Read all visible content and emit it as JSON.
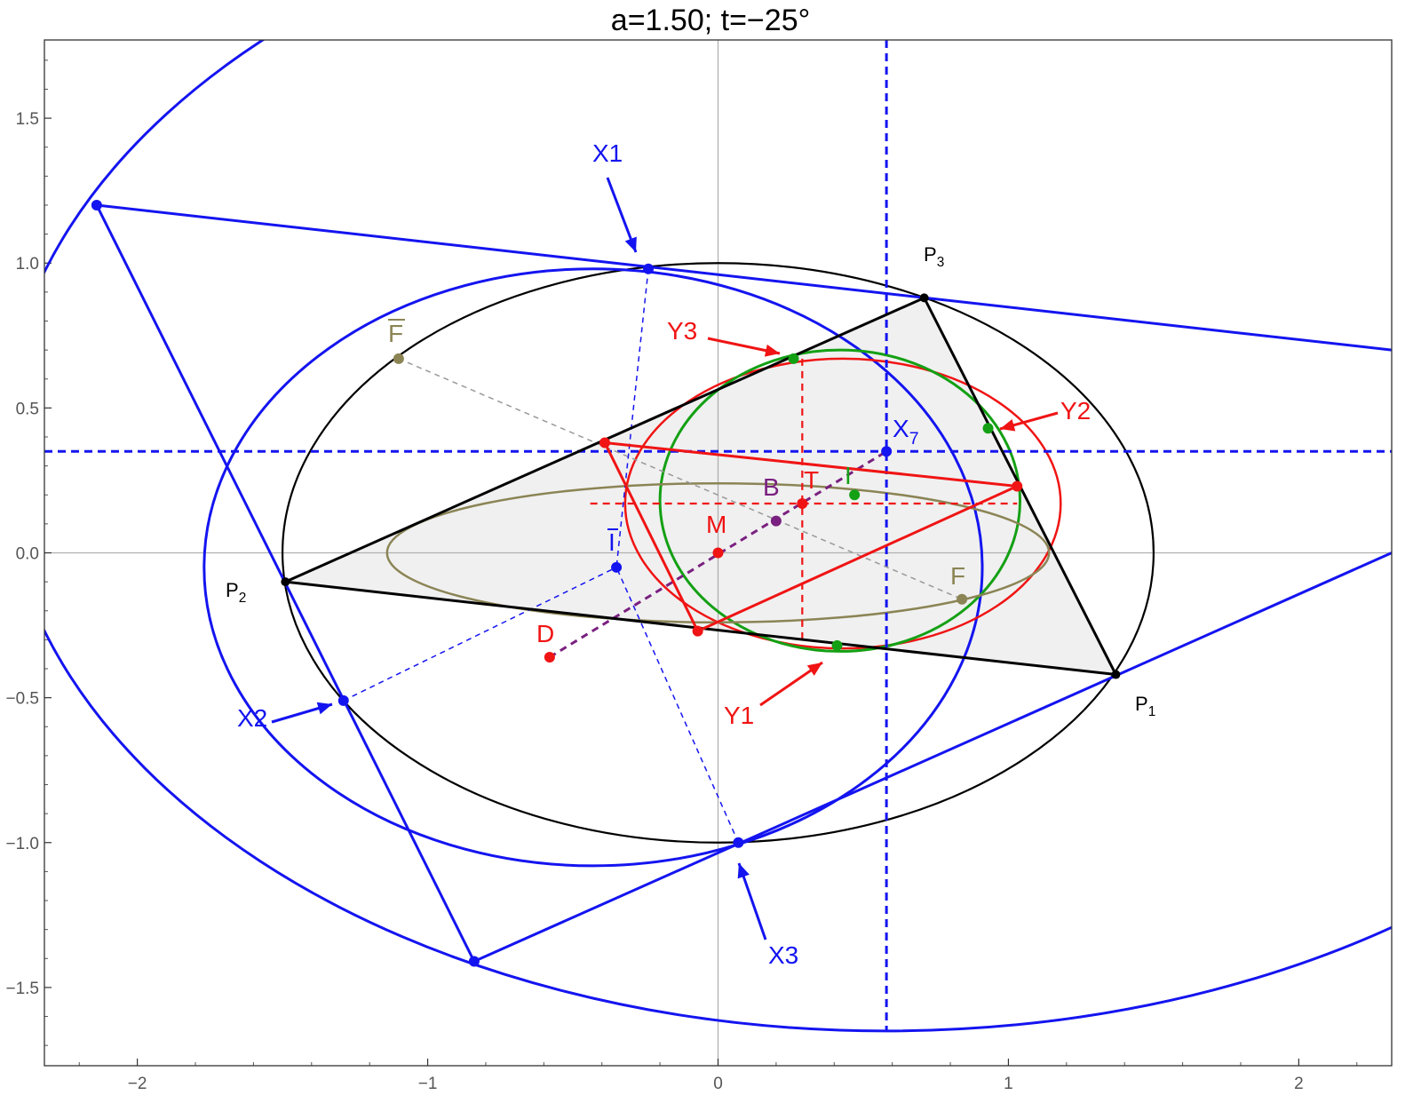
{
  "title": "a=1.50; t=−25°",
  "axes": {
    "x_ticks": [
      "−2",
      "−1",
      "0",
      "1",
      "2"
    ],
    "y_ticks": [
      "1.5",
      "1.0",
      "0.5",
      "0.0",
      "−0.5",
      "−1.0",
      "−1.5"
    ],
    "x_tick_values": [
      -2,
      -1,
      0,
      1,
      2
    ],
    "y_tick_values": [
      1.5,
      1.0,
      0.5,
      0.0,
      -0.5,
      -1.0,
      -1.5
    ],
    "xlim": [
      -2.32,
      2.32
    ],
    "ylim": [
      -1.77,
      1.77
    ]
  },
  "colors": {
    "black": "#000000",
    "blue": "#1414f0",
    "red": "#f01414",
    "green": "#14a014",
    "olive": "#8b8455",
    "purple": "#7a2080",
    "gray": "#999999",
    "fill": "#f0f0f0"
  },
  "points": {
    "P1": [
      1.37,
      -0.42
    ],
    "P2": [
      -1.49,
      -0.1
    ],
    "P3": [
      0.71,
      0.88
    ],
    "X1": [
      -0.24,
      0.98
    ],
    "X2": [
      -1.29,
      -0.51
    ],
    "X3": [
      0.07,
      -1.0
    ],
    "X7": [
      0.58,
      0.35
    ],
    "Y1": [
      0.41,
      -0.32
    ],
    "Y2": [
      0.93,
      0.43
    ],
    "Y3": [
      0.26,
      0.67
    ],
    "R1": [
      -0.39,
      0.38
    ],
    "R2": [
      1.03,
      0.23
    ],
    "R3": [
      -0.07,
      -0.27
    ],
    "F": [
      0.84,
      -0.16
    ],
    "Fbar": [
      -1.1,
      0.67
    ],
    "Ibar": [
      -0.35,
      -0.05
    ],
    "I": [
      0.47,
      0.2
    ],
    "T": [
      0.29,
      0.17
    ],
    "B": [
      0.2,
      0.11
    ],
    "M": [
      0.0,
      0.0
    ],
    "D": [
      -0.58,
      -0.36
    ],
    "E1": [
      -2.14,
      1.2
    ],
    "E2": [
      -0.84,
      -1.41
    ]
  },
  "labels": {
    "P1": "P",
    "P1_sub": "1",
    "P2": "P",
    "P2_sub": "2",
    "P3": "P",
    "P3_sub": "3",
    "X1": "X1",
    "X2": "X2",
    "X3": "X3",
    "X7": "X",
    "X7_sub": "7",
    "Y1": "Y1",
    "Y2": "Y2",
    "Y3": "Y3",
    "F": "F",
    "Fbar": "F",
    "Ibar": "I",
    "I": "I",
    "T": "T",
    "B": "B",
    "M": "M",
    "D": "D"
  }
}
